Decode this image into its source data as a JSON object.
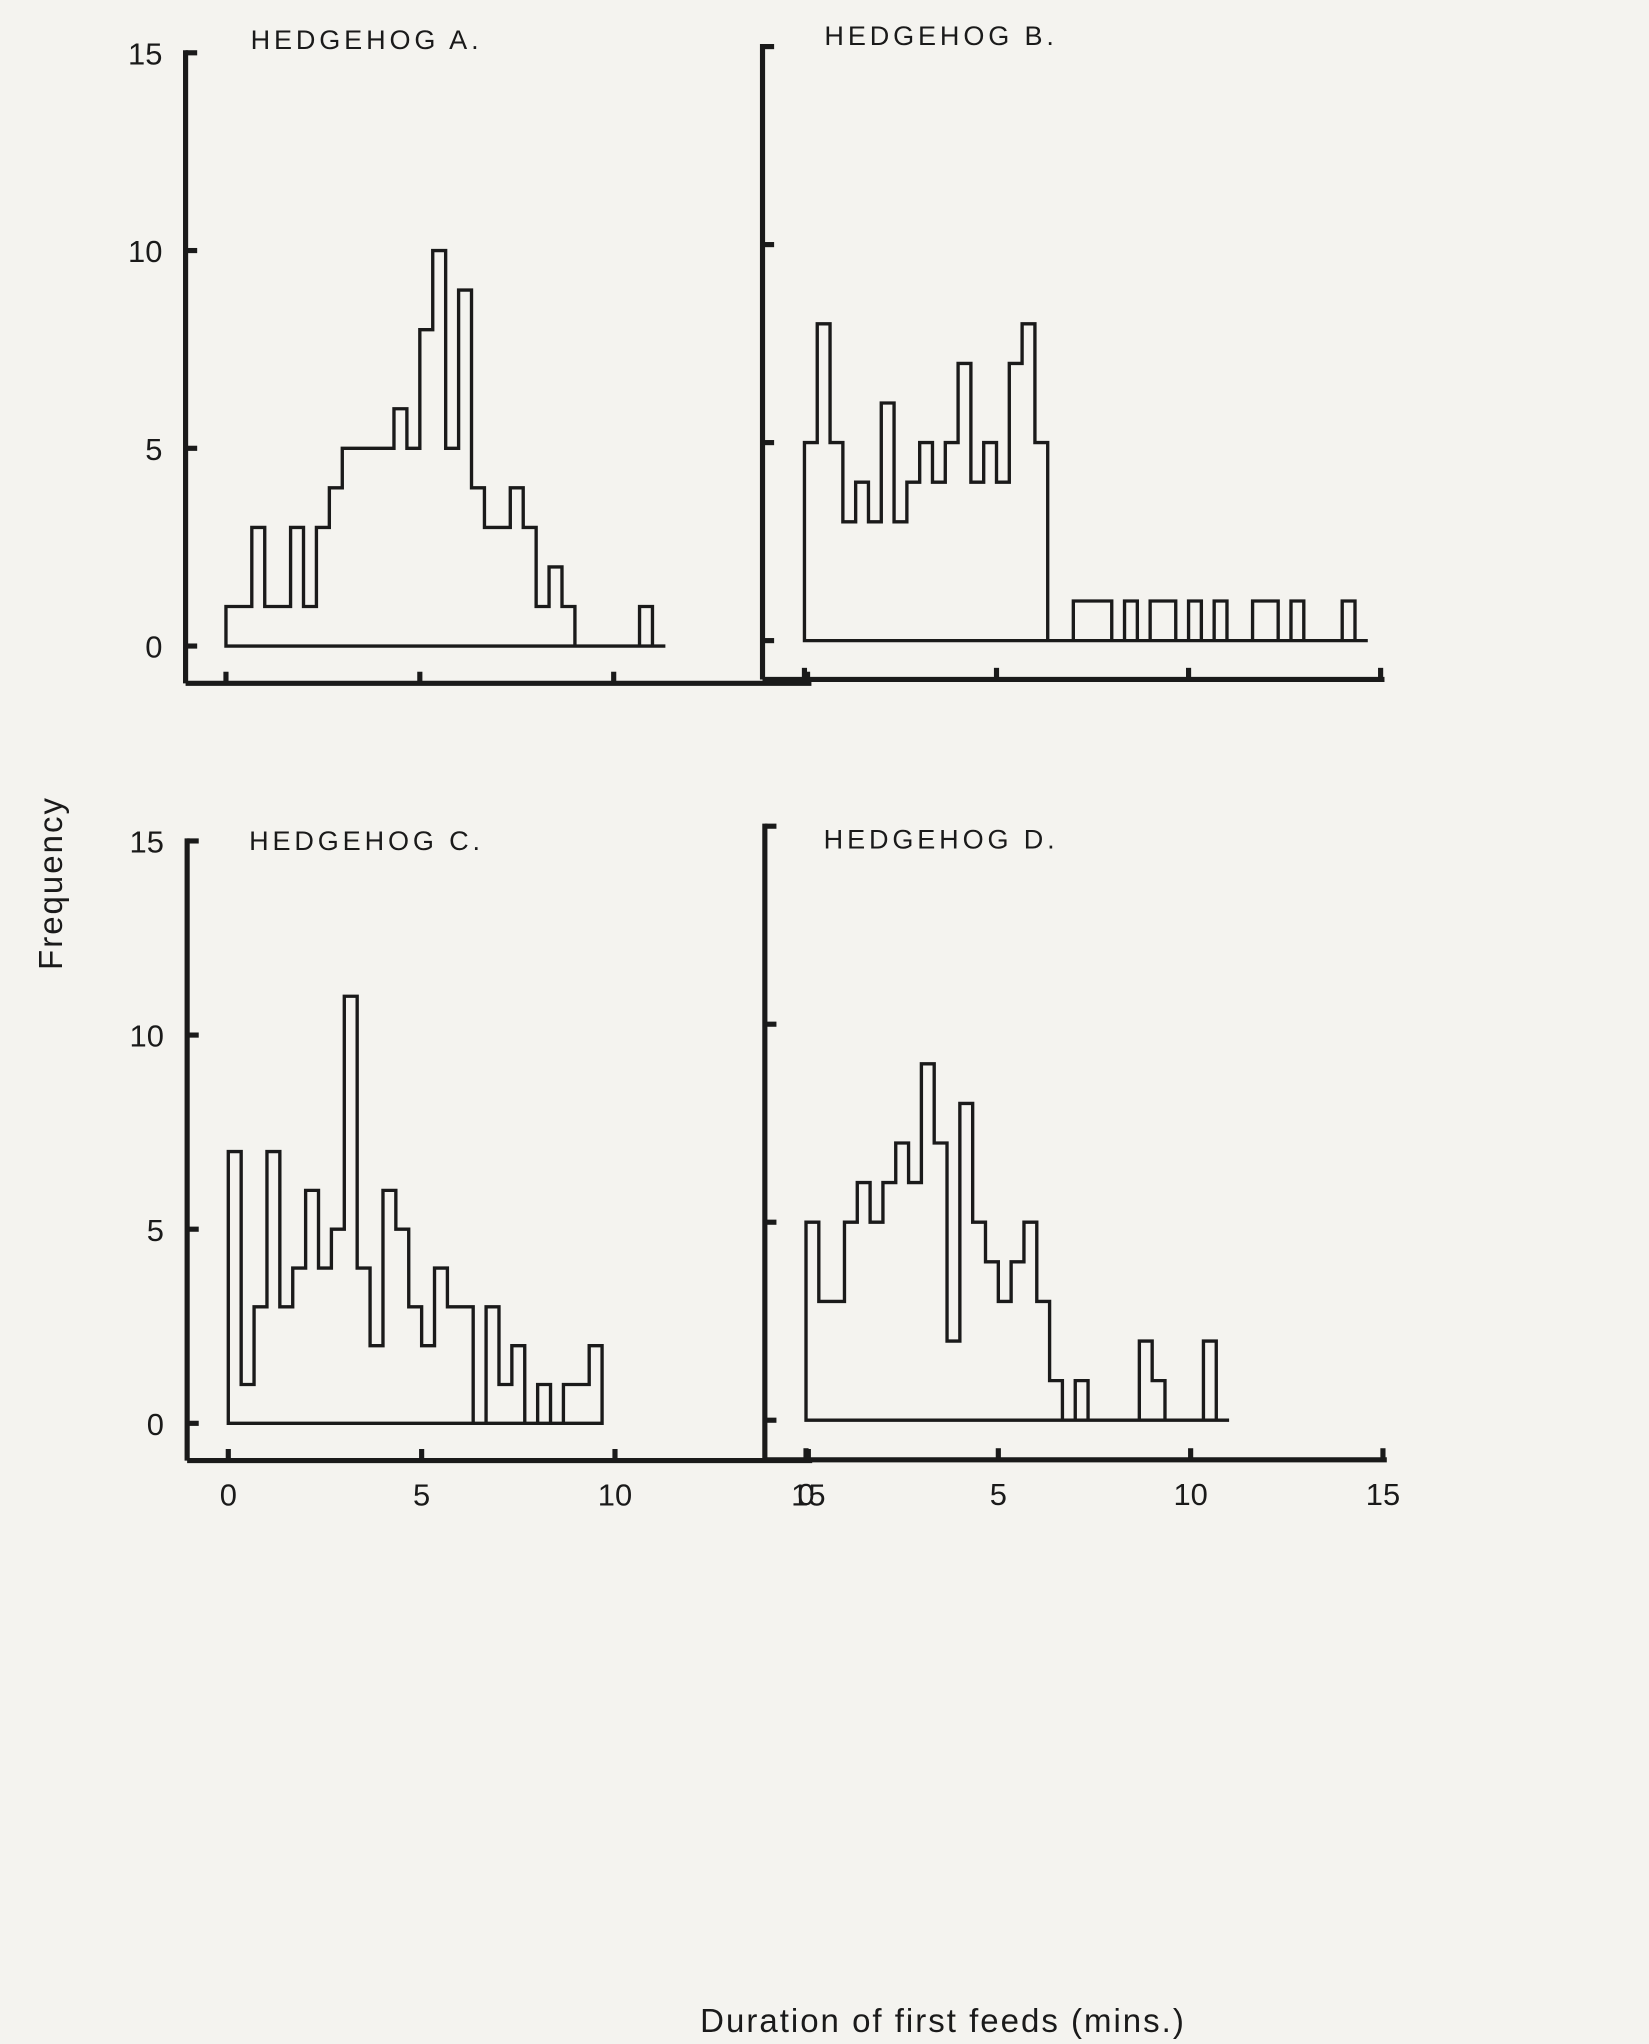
{
  "figure": {
    "ylabel": "Frequency",
    "xlabel": "Duration of first feeds (mins.)"
  },
  "chart_data": [
    {
      "type": "bar",
      "title": "HEDGEHOG A.",
      "xlabel": "Duration of first feeds (mins.)",
      "ylabel": "Frequency",
      "xlim": [
        0,
        15
      ],
      "ylim": [
        0,
        15
      ],
      "xticks": [
        0,
        5,
        10,
        15
      ],
      "yticks": [
        0,
        5,
        10,
        15
      ],
      "ytick_labels": [
        "0",
        "5",
        "10",
        "15"
      ],
      "xtick_labels": [],
      "bin_width": 0.333,
      "bin_starts": [
        0,
        0.333,
        0.667,
        1,
        1.333,
        1.667,
        2,
        2.333,
        2.667,
        3,
        3.333,
        3.667,
        4,
        4.333,
        4.667,
        5,
        5.333,
        5.667,
        6,
        6.333,
        6.667,
        7,
        7.333,
        7.667,
        8,
        8.333,
        8.667,
        9,
        9.333,
        9.667,
        10,
        10.333,
        10.667,
        11
      ],
      "values": [
        1,
        1,
        3,
        1,
        1,
        3,
        1,
        3,
        4,
        5,
        5,
        5,
        5,
        6,
        5,
        8,
        10,
        5,
        9,
        4,
        3,
        3,
        4,
        3,
        1,
        2,
        1,
        0,
        0,
        0,
        0,
        0,
        1,
        0
      ]
    },
    {
      "type": "bar",
      "title": "HEDGEHOG B.",
      "xlabel": "Duration of first feeds (mins.)",
      "ylabel": "Frequency",
      "xlim": [
        0,
        15
      ],
      "ylim": [
        0,
        15
      ],
      "xticks": [
        0,
        5,
        10,
        15
      ],
      "yticks": [
        0,
        5,
        10,
        15
      ],
      "ytick_labels": [],
      "xtick_labels": [],
      "bin_width": 0.333,
      "bin_starts": [
        0,
        0.333,
        0.667,
        1,
        1.333,
        1.667,
        2,
        2.333,
        2.667,
        3,
        3.333,
        3.667,
        4,
        4.333,
        4.667,
        5,
        5.333,
        5.667,
        6,
        6.333,
        6.667,
        7,
        7.333,
        7.667,
        8,
        8.333,
        8.667,
        9,
        9.333,
        9.667,
        10,
        10.333,
        10.667,
        11,
        11.333,
        11.667,
        12,
        12.333,
        12.667,
        13,
        13.333,
        13.667,
        14,
        14.333
      ],
      "values": [
        5,
        8,
        5,
        3,
        4,
        3,
        6,
        3,
        4,
        5,
        4,
        5,
        7,
        4,
        5,
        4,
        7,
        8,
        5,
        0,
        0,
        1,
        1,
        1,
        0,
        1,
        0,
        1,
        1,
        0,
        1,
        0,
        1,
        0,
        0,
        1,
        1,
        0,
        1,
        0,
        0,
        0,
        1,
        0
      ]
    },
    {
      "type": "bar",
      "title": "HEDGEHOG C.",
      "xlabel": "Duration of first feeds (mins.)",
      "ylabel": "Frequency",
      "xlim": [
        0,
        15
      ],
      "ylim": [
        0,
        15
      ],
      "xticks": [
        0,
        5,
        10,
        15
      ],
      "yticks": [
        0,
        5,
        10,
        15
      ],
      "ytick_labels": [
        "0",
        "5",
        "10",
        "15"
      ],
      "xtick_labels": [
        "0",
        "5",
        "10",
        "15"
      ],
      "bin_width": 0.333,
      "bin_starts": [
        0,
        0.333,
        0.667,
        1,
        1.333,
        1.667,
        2,
        2.333,
        2.667,
        3,
        3.333,
        3.667,
        4,
        4.333,
        4.667,
        5,
        5.333,
        5.667,
        6,
        6.333,
        6.667,
        7,
        7.333,
        7.667,
        8,
        8.333,
        8.667,
        9,
        9.333
      ],
      "values": [
        7,
        1,
        3,
        7,
        3,
        4,
        6,
        4,
        5,
        11,
        4,
        2,
        6,
        5,
        3,
        2,
        4,
        3,
        3,
        0,
        3,
        1,
        2,
        0,
        1,
        0,
        1,
        1,
        2
      ]
    },
    {
      "type": "bar",
      "title": "HEDGEHOG D.",
      "xlabel": "Duration of first feeds (mins.)",
      "ylabel": "Frequency",
      "xlim": [
        0,
        15
      ],
      "ylim": [
        0,
        15
      ],
      "xticks": [
        0,
        5,
        10,
        15
      ],
      "yticks": [
        0,
        5,
        10,
        15
      ],
      "ytick_labels": [],
      "xtick_labels": [
        "0",
        "5",
        "10",
        "15"
      ],
      "bin_width": 0.333,
      "bin_starts": [
        0,
        0.333,
        0.667,
        1,
        1.333,
        1.667,
        2,
        2.333,
        2.667,
        3,
        3.333,
        3.667,
        4,
        4.333,
        4.667,
        5,
        5.333,
        5.667,
        6,
        6.333,
        6.667,
        7,
        7.333,
        7.667,
        8,
        8.333,
        8.667,
        9,
        9.333,
        9.667,
        10,
        10.333,
        10.667
      ],
      "values": [
        5,
        3,
        3,
        5,
        6,
        5,
        6,
        7,
        6,
        9,
        7,
        2,
        8,
        5,
        4,
        3,
        4,
        5,
        3,
        1,
        0,
        1,
        0,
        0,
        0,
        0,
        2,
        1,
        0,
        0,
        0,
        2,
        0
      ]
    }
  ]
}
